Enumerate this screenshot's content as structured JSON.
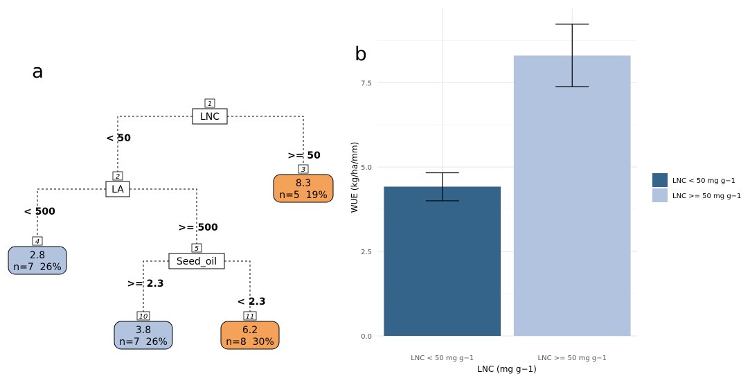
{
  "panels": {
    "a": "a",
    "b": "b"
  },
  "tree": {
    "nodes": [
      {
        "id": "1",
        "type": "split",
        "label": "LNC"
      },
      {
        "id": "2",
        "type": "split",
        "label": "LA"
      },
      {
        "id": "3",
        "type": "leaf",
        "value": "8.3",
        "stats": "n=5  19%",
        "color": "#f4a25a"
      },
      {
        "id": "4",
        "type": "leaf",
        "value": "2.8",
        "stats": "n=7  26%",
        "color": "#b1c3de"
      },
      {
        "id": "5",
        "type": "split",
        "label": "Seed_oil"
      },
      {
        "id": "10",
        "type": "leaf",
        "value": "3.8",
        "stats": "n=7  26%",
        "color": "#b1c3de"
      },
      {
        "id": "11",
        "type": "leaf",
        "value": "6.2",
        "stats": "n=8  30%",
        "color": "#f4a25a"
      }
    ],
    "edges": [
      {
        "from": "1",
        "to": "2",
        "label": "< 50"
      },
      {
        "from": "1",
        "to": "3",
        "label": ">= 50"
      },
      {
        "from": "2",
        "to": "4",
        "label": "< 500"
      },
      {
        "from": "2",
        "to": "5",
        "label": ">= 500"
      },
      {
        "from": "5",
        "to": "10",
        "label": ">= 2.3"
      },
      {
        "from": "5",
        "to": "11",
        "label": "< 2.3"
      }
    ]
  },
  "chart_data": {
    "type": "bar",
    "categories": [
      "LNC < 50 mg g−1",
      "LNC >= 50 mg g−1"
    ],
    "values": [
      4.42,
      8.3
    ],
    "error_low": [
      4.0,
      7.38
    ],
    "error_high": [
      4.83,
      9.23
    ],
    "colors": [
      "#35648b",
      "#b1c3de"
    ],
    "xlabel": "LNC (mg g−1)",
    "ylabel": "WUE (kg/ha/mm)",
    "ylim": [
      0,
      9.7
    ],
    "yticks": [
      0.0,
      2.5,
      5.0,
      7.5
    ],
    "ytick_labels": [
      "0.0",
      "2.5",
      "5.0",
      "7.5"
    ],
    "grid": true,
    "legend": {
      "position": "right",
      "entries": [
        "LNC < 50 mg g−1",
        "LNC >= 50 mg g−1"
      ]
    }
  }
}
